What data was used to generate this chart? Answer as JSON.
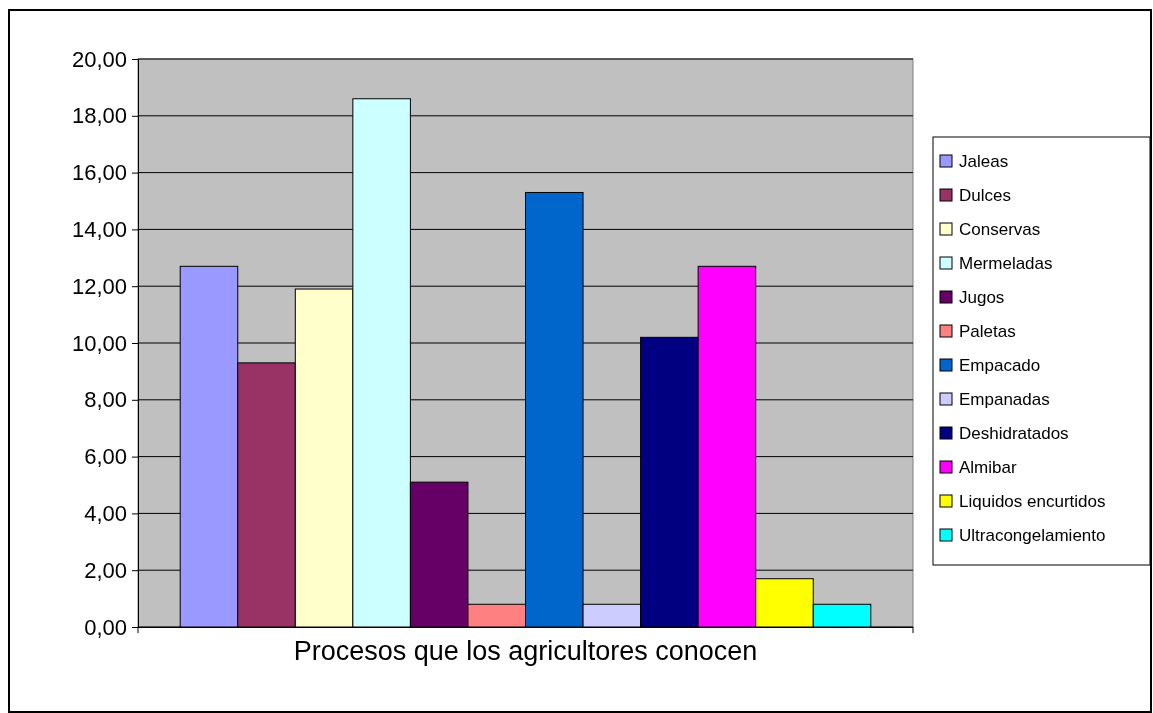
{
  "chart_data": {
    "type": "bar",
    "categories": [
      "Procesos que los agricultores conocen"
    ],
    "series": [
      {
        "name": "Jaleas",
        "color": "#9999ff",
        "values": [
          12.7
        ]
      },
      {
        "name": "Dulces",
        "color": "#993366",
        "values": [
          9.3
        ]
      },
      {
        "name": "Conservas",
        "color": "#ffffcc",
        "values": [
          11.9
        ]
      },
      {
        "name": "Mermeladas",
        "color": "#ccffff",
        "values": [
          18.6
        ]
      },
      {
        "name": "Jugos",
        "color": "#660066",
        "values": [
          5.1
        ]
      },
      {
        "name": "Paletas",
        "color": "#ff8080",
        "values": [
          0.8
        ]
      },
      {
        "name": "Empacado",
        "color": "#0066cc",
        "values": [
          15.3
        ]
      },
      {
        "name": "Empanadas",
        "color": "#ccccff",
        "values": [
          0.8
        ]
      },
      {
        "name": "Deshidratados",
        "color": "#000080",
        "values": [
          10.2
        ]
      },
      {
        "name": "Almibar",
        "color": "#ff00ff",
        "values": [
          12.7
        ]
      },
      {
        "name": "Liquidos encurtidos",
        "color": "#ffff00",
        "values": [
          1.7
        ]
      },
      {
        "name": "Ultracongelamiento",
        "color": "#00ffff",
        "values": [
          0.8
        ]
      }
    ],
    "ylim": [
      0,
      20
    ],
    "yticks": [
      {
        "value": 0,
        "label": "0,00"
      },
      {
        "value": 2,
        "label": "2,00"
      },
      {
        "value": 4,
        "label": "4,00"
      },
      {
        "value": 6,
        "label": "6,00"
      },
      {
        "value": 8,
        "label": "8,00"
      },
      {
        "value": 10,
        "label": "10,00"
      },
      {
        "value": 12,
        "label": "12,00"
      },
      {
        "value": 14,
        "label": "14,00"
      },
      {
        "value": 16,
        "label": "16,00"
      },
      {
        "value": 18,
        "label": "18,00"
      },
      {
        "value": 20,
        "label": "20,00"
      }
    ],
    "grid": "y",
    "legend": "right"
  }
}
